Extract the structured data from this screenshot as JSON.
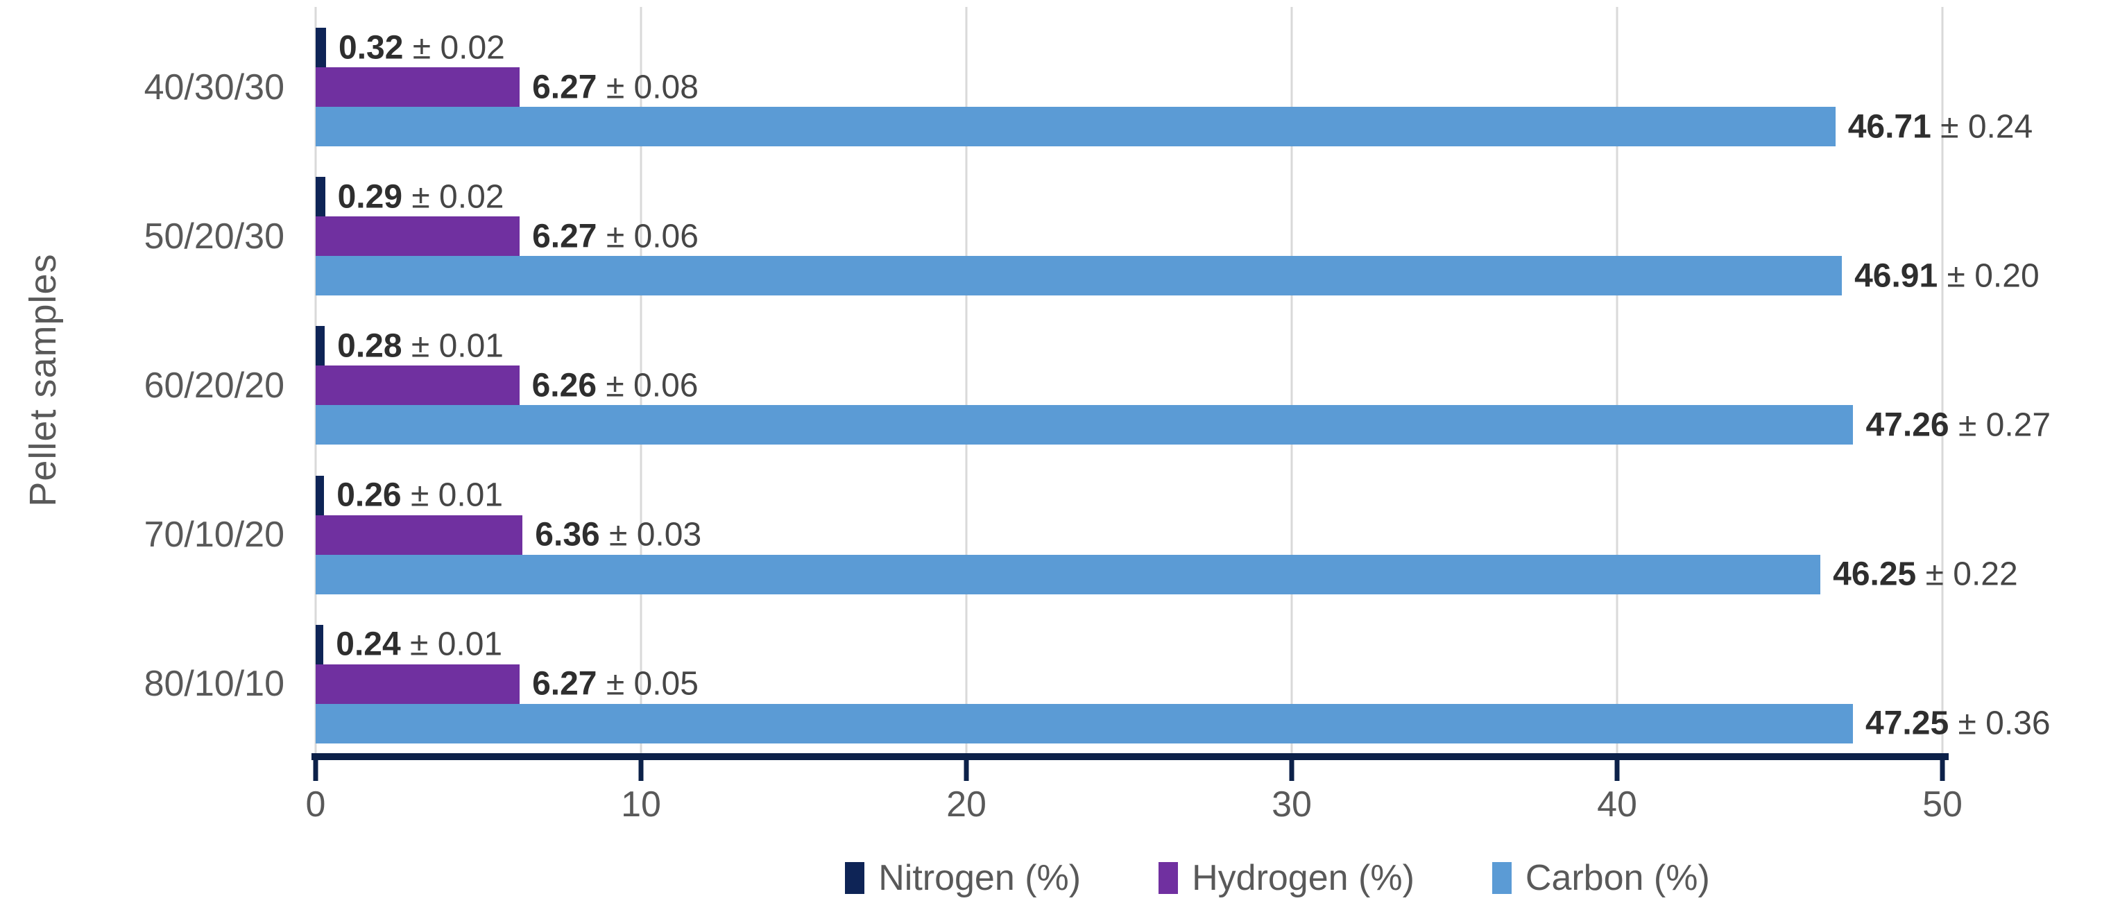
{
  "chart_data": {
    "type": "bar",
    "orientation": "horizontal",
    "title": "",
    "xlabel": "",
    "ylabel": "Pellet samples",
    "xlim": [
      0,
      50
    ],
    "x_ticks": [
      0,
      10,
      20,
      30,
      40,
      50
    ],
    "grid": "vertical gridlines at every x tick, light gray",
    "legend_position": "bottom-center",
    "label_separator": " ± ",
    "categories": [
      "40/30/30",
      "50/20/30",
      "60/20/20",
      "70/10/20",
      "80/10/10"
    ],
    "series": [
      {
        "name": "Nitrogen (%)",
        "color": "#0E2456",
        "values": [
          0.32,
          0.29,
          0.28,
          0.26,
          0.24
        ],
        "errors": [
          0.02,
          0.02,
          0.01,
          0.01,
          0.01
        ],
        "value_labels": [
          "0.32",
          "0.29",
          "0.28",
          "0.26",
          "0.24"
        ],
        "error_labels": [
          "0.02",
          "0.02",
          "0.01",
          "0.01",
          "0.01"
        ]
      },
      {
        "name": "Hydrogen (%)",
        "color": "#7030A0",
        "values": [
          6.27,
          6.27,
          6.26,
          6.36,
          6.27
        ],
        "errors": [
          0.08,
          0.06,
          0.06,
          0.03,
          0.05
        ],
        "value_labels": [
          "6.27",
          "6.27",
          "6.26",
          "6.36",
          "6.27"
        ],
        "error_labels": [
          "0.08",
          "0.06",
          "0.06",
          "0.03",
          "0.05"
        ]
      },
      {
        "name": "Carbon (%)",
        "color": "#5B9BD5",
        "values": [
          46.71,
          46.91,
          47.26,
          46.25,
          47.25
        ],
        "errors": [
          0.24,
          0.2,
          0.27,
          0.22,
          0.36
        ],
        "value_labels": [
          "46.71",
          "46.91",
          "47.26",
          "46.25",
          "47.25"
        ],
        "error_labels": [
          "0.24",
          "0.20",
          "0.27",
          "0.22",
          "0.36"
        ]
      }
    ],
    "style": {
      "axis_color": "#0C2149",
      "gridline_color": "#D9D9D9",
      "tick_text_color": "#595959",
      "data_label_color": "#464646"
    }
  }
}
